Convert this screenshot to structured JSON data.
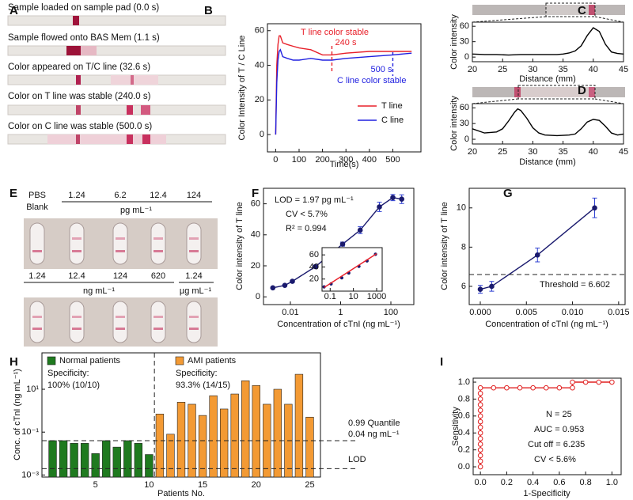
{
  "figure": {
    "A": {
      "label": "A",
      "captions": [
        "Sample loaded  on sample pad (0.0 s)",
        "Sample flowed onto BAS Mem (1.1 s)",
        "Color appeared on T/C line (32.6 s)",
        "Color on T line was stable (240.0 s)",
        "Color on C line was stable (500.0 s)"
      ]
    },
    "E": {
      "label": "E",
      "blank": [
        "PBS",
        "Blank"
      ],
      "top_values": [
        1.24,
        6.2,
        12.4,
        124
      ],
      "top_unit": "pg mL⁻¹",
      "bottom_values": [
        1.24,
        12.4,
        124,
        620
      ],
      "bottom_unit": "ng mL⁻¹",
      "last_value": 1.24,
      "last_unit": "µg mL⁻¹"
    }
  },
  "chart_data": [
    {
      "label": "B",
      "type": "line",
      "xlabel": "Time(s)",
      "ylabel": "Color Intensity of T / C Line",
      "x": [
        0,
        5,
        10,
        15,
        20,
        30,
        50,
        75,
        100,
        150,
        200,
        240,
        300,
        400,
        500,
        580
      ],
      "series": [
        {
          "name": "T line",
          "color": "#e8202a",
          "values": [
            0,
            40,
            52,
            57,
            57,
            53,
            52,
            51,
            50,
            49,
            46,
            46,
            47,
            48,
            48,
            48
          ]
        },
        {
          "name": "C line",
          "color": "#2020e0",
          "values": [
            0,
            30,
            43,
            48,
            49,
            45,
            44,
            43,
            43,
            44,
            43,
            43,
            44,
            45,
            46,
            47
          ]
        }
      ],
      "xlim": [
        -35,
        620
      ],
      "xticks": [
        0,
        100,
        200,
        300,
        400,
        500
      ],
      "ylim": [
        -10,
        64
      ],
      "yticks": [
        0,
        20,
        40,
        60
      ],
      "legend": "lower right",
      "markers": [
        {
          "x": 240,
          "label": "240 s",
          "color": "#e8202a"
        },
        {
          "x": 500,
          "label": "500 s",
          "color": "#2020e0"
        }
      ],
      "annotations": [
        {
          "text": "T line color stable",
          "color": "#e8202a"
        },
        {
          "text": "C line color stable",
          "color": "#2020e0"
        }
      ]
    },
    {
      "label": "C",
      "type": "line",
      "xlabel": "Distance (mm)",
      "ylabel": "Color intensity",
      "x": [
        20,
        22,
        24,
        26,
        28,
        30,
        32,
        34,
        35,
        36,
        37,
        38,
        39,
        40,
        41,
        42,
        43,
        44,
        45
      ],
      "series": [
        {
          "color": "#000000",
          "values": [
            6,
            5,
            5,
            4,
            5,
            5,
            5,
            5,
            6,
            8,
            12,
            22,
            42,
            57,
            50,
            25,
            10,
            7,
            6
          ]
        }
      ],
      "xlim": [
        20,
        45
      ],
      "xticks": [
        20,
        25,
        30,
        35,
        40,
        45
      ],
      "ylim": [
        -9,
        68
      ],
      "yticks": [
        0,
        30,
        60
      ]
    },
    {
      "label": "D",
      "type": "line",
      "xlabel": "Distance (mm)",
      "ylabel": "Color intensity",
      "x": [
        20,
        22,
        24,
        25,
        26,
        27,
        27.5,
        28,
        29,
        30,
        31,
        32,
        34,
        36,
        37,
        38,
        39,
        40,
        41,
        42,
        43,
        44,
        45
      ],
      "series": [
        {
          "color": "#000000",
          "values": [
            20,
            12,
            14,
            20,
            35,
            52,
            58,
            55,
            40,
            22,
            12,
            8,
            7,
            8,
            10,
            20,
            33,
            38,
            36,
            25,
            12,
            8,
            10
          ]
        }
      ],
      "xlim": [
        20,
        45
      ],
      "xticks": [
        20,
        25,
        30,
        35,
        40,
        45
      ],
      "ylim": [
        -9,
        68
      ],
      "yticks": [
        0,
        30,
        60
      ]
    },
    {
      "label": "F",
      "type": "line",
      "xscale": "log",
      "xlabel": "Concentration of cTnI  (ng mL⁻¹)",
      "ylabel": "Color intensity of T line",
      "x": [
        0.002,
        0.006,
        0.012,
        0.1,
        1.2,
        6,
        35,
        120,
        270
      ],
      "series": [
        {
          "color": "#1a1a6e",
          "style": "line+markers",
          "values": [
            5.8,
            7.4,
            10,
            19.5,
            34,
            43,
            58,
            64,
            63
          ],
          "errors": [
            0.5,
            0.5,
            0.7,
            0.8,
            1.3,
            2.2,
            3,
            2,
            2.8
          ]
        }
      ],
      "xlim": [
        0.00085,
        820
      ],
      "xticks": [
        0.01,
        1,
        100
      ],
      "ylim": [
        -5,
        70
      ],
      "yticks": [
        0,
        20,
        40,
        60
      ],
      "annotations": [
        {
          "text": "LOD = 1.97 pg mL⁻¹"
        },
        {
          "text": "CV < 5.7%"
        },
        {
          "text": "R² = 0.994"
        }
      ]
    },
    {
      "type": "scatter",
      "xscale": "log",
      "series": [
        {
          "color": "#1a1a6e",
          "style": "markers",
          "x": [
            0.03,
            0.12,
            1,
            4,
            30,
            150,
            800
          ],
          "values": [
            7,
            12,
            22,
            30,
            41,
            50,
            61
          ]
        },
        {
          "color": "#e8202a",
          "style": "line",
          "x": [
            0.03,
            1000
          ],
          "values": [
            6,
            62
          ]
        }
      ],
      "xlim": [
        0.02,
        3000
      ],
      "xticks": [
        0.1,
        10,
        1000
      ],
      "ylim": [
        0,
        72
      ],
      "yticks": [
        20,
        40,
        60
      ]
    },
    {
      "label": "G",
      "type": "line",
      "xlabel": "Concentration of cTnI (ng mL⁻¹)",
      "ylabel": "Color intensity of T line",
      "x": [
        0,
        0.00124,
        0.0062,
        0.0124
      ],
      "series": [
        {
          "color": "#1a1a6e",
          "style": "line+markers",
          "values": [
            5.85,
            6.0,
            7.6,
            10.0
          ],
          "errors": [
            0.2,
            0.25,
            0.35,
            0.5
          ]
        }
      ],
      "xlim": [
        -0.0012,
        0.0157
      ],
      "xticks": [
        {
          "value": 0,
          "label": "0.000"
        },
        {
          "value": 0.005,
          "label": "0.005"
        },
        {
          "value": 0.01,
          "label": "0.010"
        },
        {
          "value": 0.015,
          "label": "0.015"
        }
      ],
      "ylim": [
        5.07,
        11.0
      ],
      "yticks": [
        6,
        8,
        10
      ],
      "refs": [
        {
          "value": 6.602,
          "label": "Threshold = 6.602"
        }
      ]
    },
    {
      "label": "H",
      "type": "bar",
      "yscale": "log",
      "xlabel": "Patients No.",
      "ylabel": "Conc. of cTnI (ng mL⁻¹)",
      "x": [
        1,
        2,
        3,
        4,
        5,
        6,
        7,
        8,
        9,
        10,
        11,
        12,
        13,
        14,
        15,
        16,
        17,
        18,
        19,
        20,
        21,
        22,
        23,
        24,
        25
      ],
      "series": [
        {
          "name": "Normal patients",
          "color": "#1f7a1f",
          "note": [
            "Specificity:",
            "100% (10/10)"
          ],
          "values": [
            0.04,
            0.04,
            0.03,
            0.03,
            0.01,
            0.04,
            0.02,
            0.04,
            0.03,
            0.009,
            null,
            null,
            null,
            null,
            null,
            null,
            null,
            null,
            null,
            null,
            null,
            null,
            null,
            null,
            null
          ]
        },
        {
          "name": "AMI patients",
          "color": "#f39a34",
          "note": [
            "Specificity:",
            "93.3% (14/15)"
          ],
          "values": [
            null,
            null,
            null,
            null,
            null,
            null,
            null,
            null,
            null,
            null,
            0.7,
            0.08,
            2.5,
            2,
            0.6,
            5,
            1.2,
            6,
            25,
            15,
            2,
            10,
            2,
            50,
            0.5
          ]
        }
      ],
      "xlim": [
        0,
        26
      ],
      "xticks": [
        5,
        10,
        15,
        20,
        25
      ],
      "ylim": [
        0.0008,
        500
      ],
      "yticks": [
        {
          "value": 0.001,
          "label": "10⁻³"
        },
        {
          "value": 0.1,
          "label": "10⁻¹"
        },
        {
          "value": 10,
          "label": "10¹"
        }
      ],
      "legend": "top",
      "refs": [
        {
          "value": 0.04,
          "title": "0.99 Quantile",
          "label": "0.04 ng mL⁻¹"
        },
        {
          "value": 0.00197,
          "label": "LOD"
        }
      ]
    },
    {
      "label": "I",
      "type": "line",
      "xlabel": "1-Specificity",
      "ylabel": "Sensitivity",
      "x": [
        0,
        0,
        0,
        0,
        0,
        0,
        0,
        0,
        0,
        0,
        0,
        0,
        0,
        0,
        0,
        0.1,
        0.2,
        0.3,
        0.4,
        0.5,
        0.6,
        0.7,
        0.7,
        0.8,
        0.9,
        1.0
      ],
      "series": [
        {
          "color": "#e02020",
          "style": "line+markers",
          "marker": "open",
          "values": [
            0,
            0.067,
            0.133,
            0.2,
            0.267,
            0.333,
            0.4,
            0.467,
            0.533,
            0.6,
            0.667,
            0.733,
            0.8,
            0.867,
            0.933,
            0.933,
            0.933,
            0.933,
            0.933,
            0.933,
            0.933,
            0.933,
            1.0,
            1.0,
            1.0,
            1.0
          ]
        }
      ],
      "xlim": [
        -0.055,
        1.07
      ],
      "xticks": [
        {
          "value": 0,
          "label": "0.0"
        },
        0.2,
        0.4,
        0.6,
        0.8,
        {
          "value": 1,
          "label": "1.0"
        }
      ],
      "ylim": [
        -0.093,
        1.047
      ],
      "yticks": [
        {
          "value": 0,
          "label": "0.0"
        },
        0.2,
        0.4,
        0.6,
        0.8,
        {
          "value": 1,
          "label": "1.0"
        }
      ],
      "annotations": [
        {
          "text": "N = 25"
        },
        {
          "text": "AUC = 0.953"
        },
        {
          "text": "Cut off = 6.235"
        },
        {
          "text": "CV < 5.6%"
        }
      ]
    }
  ]
}
